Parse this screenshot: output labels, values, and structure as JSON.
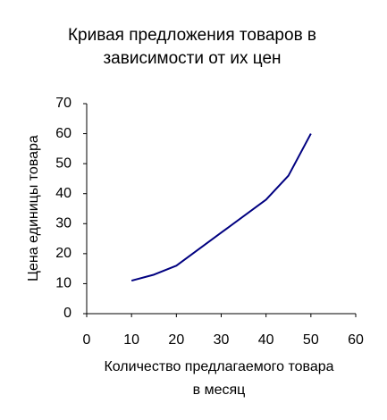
{
  "chart_data": {
    "type": "line",
    "title": [
      "Кривая предложения товаров в",
      "зависимости от их цен"
    ],
    "x_label": [
      "Количество предлагаемого товара",
      "в месяц"
    ],
    "y_label": "Цена единицы товара",
    "x": [
      10,
      15,
      20,
      30,
      40,
      45,
      50
    ],
    "series": [
      {
        "color": "#000080",
        "values": [
          11,
          13,
          16,
          27,
          38,
          46,
          60
        ]
      }
    ],
    "xlim": [
      0,
      60
    ],
    "xticks": [
      0,
      10,
      20,
      30,
      40,
      50,
      60
    ],
    "ylim": [
      0,
      70
    ],
    "yticks": [
      0,
      10,
      20,
      30,
      40,
      50,
      60,
      70
    ]
  }
}
